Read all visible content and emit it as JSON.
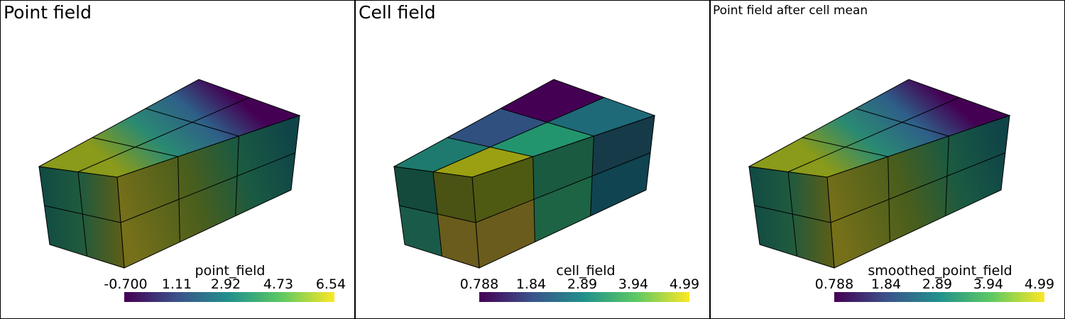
{
  "panels": [
    {
      "title": "Point field",
      "scalar_bar": {
        "title": "point_field",
        "ticks": [
          "-0.700",
          "1.11",
          "2.92",
          "4.73",
          "6.54"
        ]
      }
    },
    {
      "title": "Cell field",
      "scalar_bar": {
        "title": "cell_field",
        "ticks": [
          "0.788",
          "1.84",
          "2.89",
          "3.94",
          "4.99"
        ]
      }
    },
    {
      "title": "Point field after cell mean",
      "scalar_bar": {
        "title": "smoothed_point_field",
        "ticks": [
          "0.788",
          "1.84",
          "2.89",
          "3.94",
          "4.99"
        ]
      }
    }
  ]
}
